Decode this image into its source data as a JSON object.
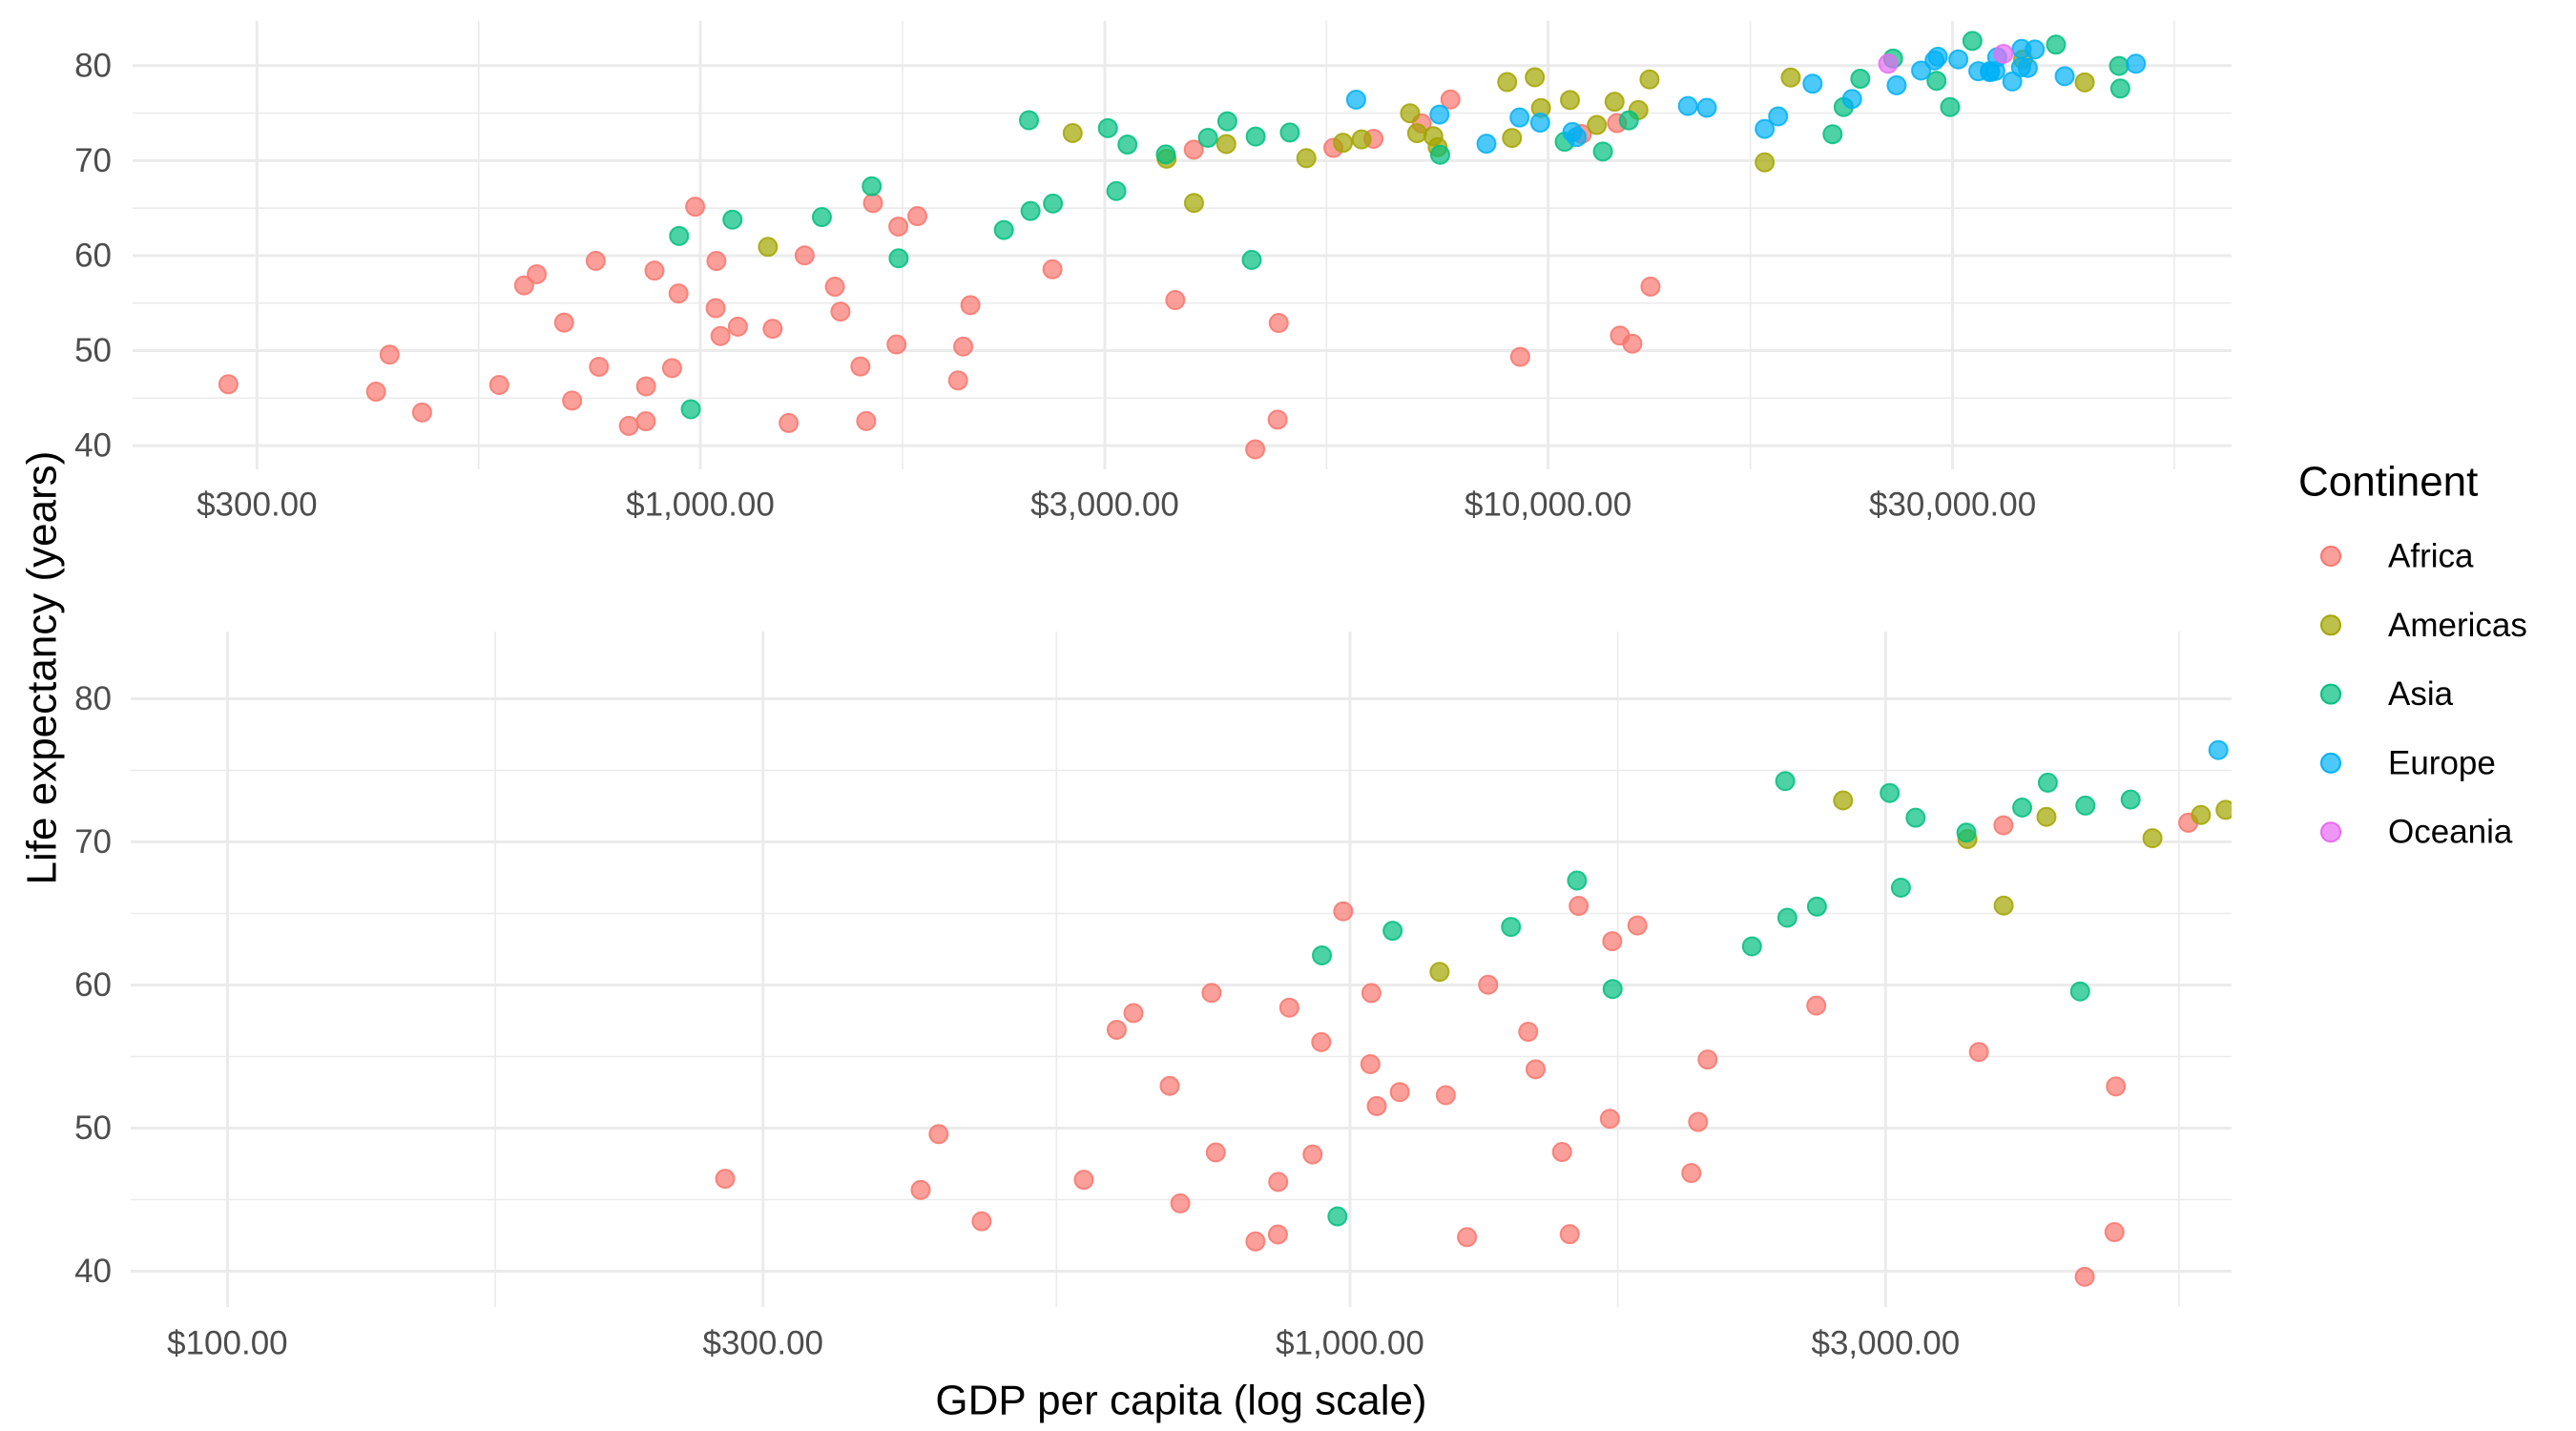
{
  "chart_data": {
    "type": "scatter",
    "title": "",
    "xlabel": "GDP per capita (log scale)",
    "ylabel": "Life expectancy (years)",
    "x_scale": "log10",
    "legend": {
      "title": "Continent",
      "position": "right",
      "entries": [
        {
          "name": "Africa",
          "color": "#F8766D"
        },
        {
          "name": "Americas",
          "color": "#A3A500"
        },
        {
          "name": "Asia",
          "color": "#00BF7D"
        },
        {
          "name": "Europe",
          "color": "#00B0F6"
        },
        {
          "name": "Oceania",
          "color": "#E76BF3"
        }
      ]
    },
    "panels": [
      {
        "name": "full-range",
        "xlim": [
          214,
          64000
        ],
        "ylim": [
          37.5,
          84.7
        ],
        "x_ticks": [
          300,
          1000,
          3000,
          10000,
          30000
        ],
        "x_tick_labels": [
          "$300.00",
          "$1,000.00",
          "$3,000.00",
          "$10,000.00",
          "$30,000.00"
        ],
        "y_ticks": [
          40,
          50,
          60,
          70,
          80
        ],
        "y_tick_labels": [
          "40",
          "50",
          "60",
          "70",
          "80"
        ],
        "grid": true
      },
      {
        "name": "zoomed-low-income",
        "xlim": [
          82,
          6100
        ],
        "ylim": [
          37.5,
          84.7
        ],
        "x_ticks": [
          100,
          300,
          1000,
          3000
        ],
        "x_tick_labels": [
          "$100.00",
          "$300.00",
          "$1,000.00",
          "$3,000.00"
        ],
        "y_ticks": [
          40,
          50,
          60,
          70,
          80
        ],
        "y_tick_labels": [
          "40",
          "50",
          "60",
          "70",
          "80"
        ],
        "grid": true
      }
    ],
    "series": [
      {
        "name": "Africa",
        "points": [
          [
            6223.37,
            72.3
          ],
          [
            4797.23,
            42.73
          ],
          [
            1441.28,
            56.73
          ],
          [
            12569.85,
            50.73
          ],
          [
            1217.03,
            52.3
          ],
          [
            430.07,
            49.58
          ],
          [
            2042.1,
            50.43
          ],
          [
            706.02,
            44.74
          ],
          [
            1704.06,
            50.65
          ],
          [
            986.15,
            65.15
          ],
          [
            277.55,
            46.46
          ],
          [
            3632.56,
            55.32
          ],
          [
            1544.75,
            48.33
          ],
          [
            2082.48,
            54.79
          ],
          [
            5581.18,
            71.34
          ],
          [
            12154.09,
            51.58
          ],
          [
            641.37,
            58.04
          ],
          [
            690.81,
            52.95
          ],
          [
            13206.48,
            56.74
          ],
          [
            752.75,
            59.45
          ],
          [
            1327.61,
            60.02
          ],
          [
            942.65,
            56.01
          ],
          [
            579.23,
            46.39
          ],
          [
            1463.25,
            54.11
          ],
          [
            1569.33,
            42.59
          ],
          [
            414.51,
            45.68
          ],
          [
            12057.5,
            73.95
          ],
          [
            1044.77,
            59.44
          ],
          [
            759.35,
            48.3
          ],
          [
            1042.58,
            54.47
          ],
          [
            1803.15,
            64.16
          ],
          [
            10956.99,
            72.8
          ],
          [
            3820.18,
            71.16
          ],
          [
            823.69,
            42.08
          ],
          [
            4811.06,
            52.91
          ],
          [
            619.68,
            56.87
          ],
          [
            2013.98,
            46.86
          ],
          [
            7670.12,
            76.44
          ],
          [
            863.09,
            46.24
          ],
          [
            1598.44,
            65.53
          ],
          [
            1712.47,
            63.06
          ],
          [
            862.54,
            42.57
          ],
          [
            926.14,
            48.16
          ],
          [
            9269.66,
            49.34
          ],
          [
            2602.39,
            58.56
          ],
          [
            4513.48,
            39.61
          ],
          [
            1107.48,
            52.52
          ],
          [
            882.97,
            58.42
          ],
          [
            7092.92,
            73.92
          ],
          [
            1056.38,
            51.54
          ],
          [
            1271.21,
            42.38
          ],
          [
            469.71,
            43.49
          ]
        ]
      },
      {
        "name": "Americas",
        "points": [
          [
            12779.38,
            75.32
          ],
          [
            3822.14,
            65.55
          ],
          [
            9065.8,
            72.39
          ],
          [
            36319.24,
            80.65
          ],
          [
            13171.64,
            78.55
          ],
          [
            7006.58,
            72.89
          ],
          [
            9645.06,
            78.78
          ],
          [
            8948.1,
            78.27
          ],
          [
            6025.37,
            72.24
          ],
          [
            6873.26,
            74.99
          ],
          [
            5728.35,
            71.88
          ],
          [
            5186.05,
            70.26
          ],
          [
            1201.64,
            60.92
          ],
          [
            3548.33,
            70.2
          ],
          [
            7320.88,
            72.57
          ],
          [
            11977.57,
            76.2
          ],
          [
            2749.32,
            72.9
          ],
          [
            9809.19,
            75.54
          ],
          [
            4172.84,
            71.75
          ],
          [
            7408.91,
            71.42
          ],
          [
            19328.71,
            78.75
          ],
          [
            18008.51,
            69.82
          ],
          [
            42951.65,
            78.24
          ],
          [
            10611.46,
            76.38
          ],
          [
            11415.81,
            73.75
          ]
        ]
      },
      {
        "name": "Asia",
        "points": [
          [
            974.58,
            43.83
          ],
          [
            29796.05,
            75.64
          ],
          [
            1391.25,
            64.06
          ],
          [
            1713.78,
            59.72
          ],
          [
            4959.11,
            72.96
          ],
          [
            39724.98,
            82.21
          ],
          [
            2452.21,
            64.7
          ],
          [
            3540.65,
            70.65
          ],
          [
            11605.71,
            70.96
          ],
          [
            4471.06,
            59.55
          ],
          [
            25523.28,
            80.75
          ],
          [
            31656.07,
            82.6
          ],
          [
            4519.46,
            72.54
          ],
          [
            1593.07,
            67.3
          ],
          [
            23348.14,
            78.62
          ],
          [
            47306.99,
            77.59
          ],
          [
            10461.06,
            71.99
          ],
          [
            12451.66,
            74.24
          ],
          [
            3095.77,
            66.8
          ],
          [
            944.0,
            62.07
          ],
          [
            1091.36,
            63.79
          ],
          [
            22316.19,
            75.64
          ],
          [
            2605.95,
            65.48
          ],
          [
            3190.48,
            71.69
          ],
          [
            21654.83,
            72.78
          ],
          [
            47143.18,
            79.97
          ],
          [
            3970.1,
            72.4
          ],
          [
            4184.55,
            74.14
          ],
          [
            28718.28,
            78.4
          ],
          [
            7458.4,
            70.62
          ],
          [
            2441.58,
            74.25
          ],
          [
            3025.35,
            73.42
          ],
          [
            2280.77,
            62.7
          ]
        ]
      },
      {
        "name": "Europe",
        "points": [
          [
            5937.03,
            76.42
          ],
          [
            36126.49,
            79.83
          ],
          [
            33692.61,
            79.44
          ],
          [
            7446.3,
            74.85
          ],
          [
            10680.79,
            73.01
          ],
          [
            14619.22,
            75.75
          ],
          [
            22833.31,
            76.49
          ],
          [
            35278.42,
            78.33
          ],
          [
            33207.08,
            79.31
          ],
          [
            30470.02,
            80.66
          ],
          [
            32170.37,
            79.41
          ],
          [
            27538.41,
            79.48
          ],
          [
            18008.94,
            73.34
          ],
          [
            36180.79,
            81.76
          ],
          [
            40676.0,
            78.89
          ],
          [
            28569.72,
            80.55
          ],
          [
            9253.9,
            74.54
          ],
          [
            36797.93,
            79.76
          ],
          [
            49357.19,
            80.2
          ],
          [
            15389.92,
            75.56
          ],
          [
            20509.65,
            78.1
          ],
          [
            10808.48,
            72.48
          ],
          [
            9786.53,
            74.0
          ],
          [
            18678.31,
            74.66
          ],
          [
            25768.26,
            77.93
          ],
          [
            28821.06,
            80.94
          ],
          [
            33859.75,
            80.88
          ],
          [
            37506.42,
            81.7
          ],
          [
            8458.28,
            71.78
          ],
          [
            33203.26,
            79.43
          ]
        ]
      },
      {
        "name": "Oceania",
        "points": [
          [
            34435.37,
            81.24
          ],
          [
            25185.01,
            80.2
          ]
        ]
      }
    ]
  }
}
